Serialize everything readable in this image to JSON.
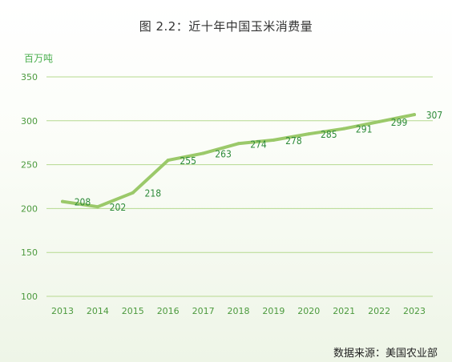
{
  "title": "图 2.2：近十年中国玉米消费量",
  "unit_label": "百万吨",
  "source": "数据来源：美国农业部",
  "colors": {
    "line": "#9bc96a",
    "grid": "#b5d98f",
    "text_green": "#4c9a3e",
    "label_green": "#2e8b3a"
  },
  "chart_data": {
    "type": "line",
    "title": "图 2.2：近十年中国玉米消费量",
    "ylabel": "百万吨",
    "xlabel": "",
    "categories": [
      "2013",
      "2014",
      "2015",
      "2016",
      "2017",
      "2018",
      "2019",
      "2020",
      "2021",
      "2022",
      "2023"
    ],
    "series": [
      {
        "values": [
          208,
          202,
          218,
          255,
          263,
          274,
          278,
          285,
          291,
          299,
          307
        ],
        "labels": [
          "208",
          "202",
          "218",
          "255",
          "263",
          "274",
          "278",
          "285",
          "291",
          "299",
          "307"
        ]
      }
    ],
    "yticks": [
      "100",
      "150",
      "200",
      "250",
      "300",
      "350"
    ],
    "ylim": [
      100,
      350
    ],
    "grid": true,
    "legend": "none"
  }
}
